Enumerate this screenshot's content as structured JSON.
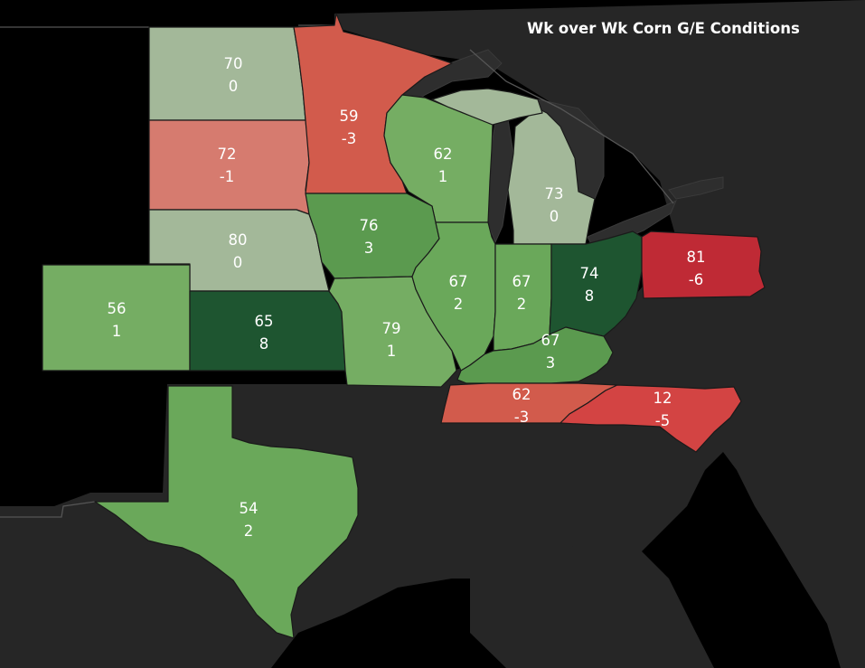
{
  "title": "Wk over Wk Corn G/E Conditions",
  "colors": {
    "water": "#000000",
    "land": "#262626",
    "lake": "#2e2e2e",
    "neutral": "#a3b899",
    "green_1": "#75ad63",
    "green_2": "#6aa85a",
    "green_3": "#5b9a4f",
    "green_8": "#1e5530",
    "red_1": "#d67b6f",
    "red_3": "#d25b4c",
    "red_5": "#d34443",
    "red_6": "#bf2a35"
  },
  "states": [
    {
      "id": "ND",
      "value": "70",
      "change": "0",
      "color": "#a3b899"
    },
    {
      "id": "SD",
      "value": "72",
      "change": "-1",
      "color": "#d67b6f"
    },
    {
      "id": "NE",
      "value": "80",
      "change": "0",
      "color": "#a3b899"
    },
    {
      "id": "MN",
      "value": "59",
      "change": "-3",
      "color": "#d25b4c"
    },
    {
      "id": "WI",
      "value": "62",
      "change": "1",
      "color": "#75ad63"
    },
    {
      "id": "MI",
      "value": "73",
      "change": "0",
      "color": "#a3b899"
    },
    {
      "id": "IA",
      "value": "76",
      "change": "3",
      "color": "#5b9a4f"
    },
    {
      "id": "CO",
      "value": "56",
      "change": "1",
      "color": "#75ad63"
    },
    {
      "id": "KS",
      "value": "65",
      "change": "8",
      "color": "#1e5530"
    },
    {
      "id": "MO",
      "value": "79",
      "change": "1",
      "color": "#75ad63"
    },
    {
      "id": "IL",
      "value": "67",
      "change": "2",
      "color": "#6aa85a"
    },
    {
      "id": "IN",
      "value": "67",
      "change": "2",
      "color": "#6aa85a"
    },
    {
      "id": "OH",
      "value": "74",
      "change": "8",
      "color": "#1e5530"
    },
    {
      "id": "PA",
      "value": "81",
      "change": "-6",
      "color": "#bf2a35"
    },
    {
      "id": "KY",
      "value": "67",
      "change": "3",
      "color": "#5b9a4f"
    },
    {
      "id": "TN",
      "value": "62",
      "change": "-3",
      "color": "#d25b4c"
    },
    {
      "id": "NC",
      "value": "12",
      "change": "-5",
      "color": "#d34443"
    },
    {
      "id": "TX",
      "value": "54",
      "change": "2",
      "color": "#6aa85a"
    }
  ]
}
